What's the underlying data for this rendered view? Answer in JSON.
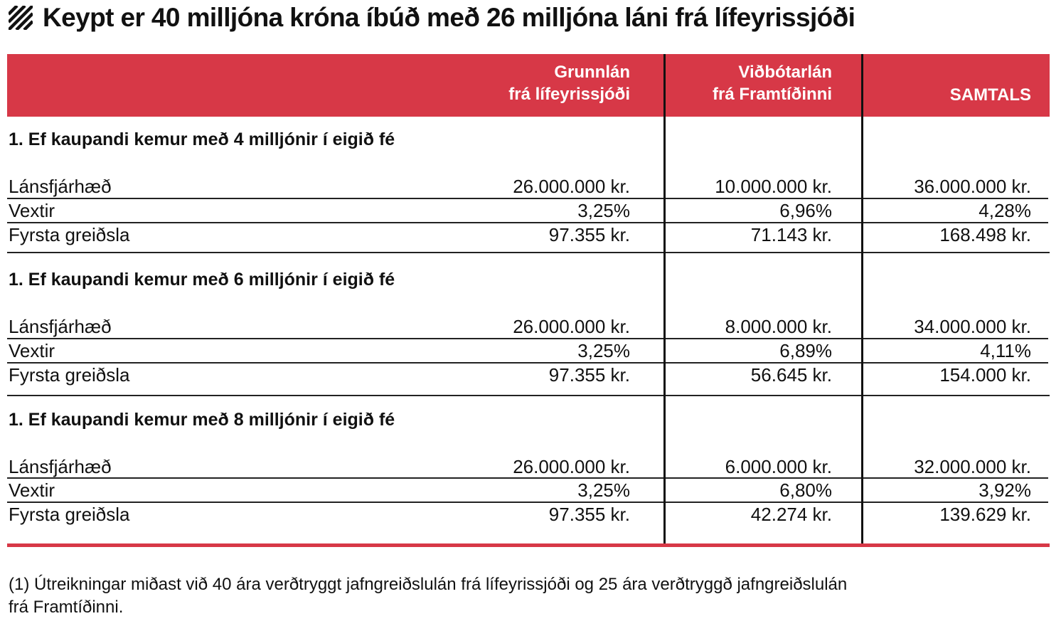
{
  "title": "Keypt er 40 milljóna króna íbúð með 26 milljóna láni frá lífeyrissjóði",
  "accent_color": "#d73847",
  "title_icon": "diagonal-stripes-icon",
  "columns": [
    {
      "line1": "Grunnlán",
      "line2": "frá lífeyrissjóði"
    },
    {
      "line1": "Viðbótarlán",
      "line2": "frá Framtíðinni"
    },
    {
      "line1": "",
      "line2": "SAMTALS"
    }
  ],
  "sections": [
    {
      "title": "1. Ef kaupandi kemur með 4 milljónir í eigið fé",
      "rows": [
        {
          "label": "Lánsfjárhæð",
          "values": [
            "26.000.000 kr.",
            "10.000.000 kr.",
            "36.000.000 kr."
          ]
        },
        {
          "label": "Vextir",
          "values": [
            "3,25%",
            "6,96%",
            "4,28%"
          ]
        },
        {
          "label": "Fyrsta greiðsla",
          "values": [
            "97.355 kr.",
            "71.143 kr.",
            "168.498 kr."
          ]
        }
      ]
    },
    {
      "title": "1. Ef kaupandi kemur með 6 milljónir í eigið fé",
      "rows": [
        {
          "label": "Lánsfjárhæð",
          "values": [
            "26.000.000 kr.",
            "8.000.000 kr.",
            "34.000.000 kr."
          ]
        },
        {
          "label": "Vextir",
          "values": [
            "3,25%",
            "6,89%",
            "4,11%"
          ]
        },
        {
          "label": "Fyrsta greiðsla",
          "values": [
            "97.355 kr.",
            "56.645 kr.",
            "154.000 kr."
          ]
        }
      ]
    },
    {
      "title": "1. Ef kaupandi kemur með 8 milljónir í eigið fé",
      "rows": [
        {
          "label": "Lánsfjárhæð",
          "values": [
            "26.000.000 kr.",
            "6.000.000 kr.",
            "32.000.000 kr."
          ]
        },
        {
          "label": "Vextir",
          "values": [
            "3,25%",
            "6,80%",
            "3,92%"
          ]
        },
        {
          "label": "Fyrsta greiðsla",
          "values": [
            "97.355 kr.",
            "42.274 kr.",
            "139.629 kr."
          ]
        }
      ]
    }
  ],
  "footnote_line1": "(1) Útreikningar miðast við 40 ára verðtryggt jafngreiðslulán frá lífeyrissjóði og 25 ára verðtryggð jafngreiðslulán",
  "footnote_line2": "frá Framtíðinni."
}
